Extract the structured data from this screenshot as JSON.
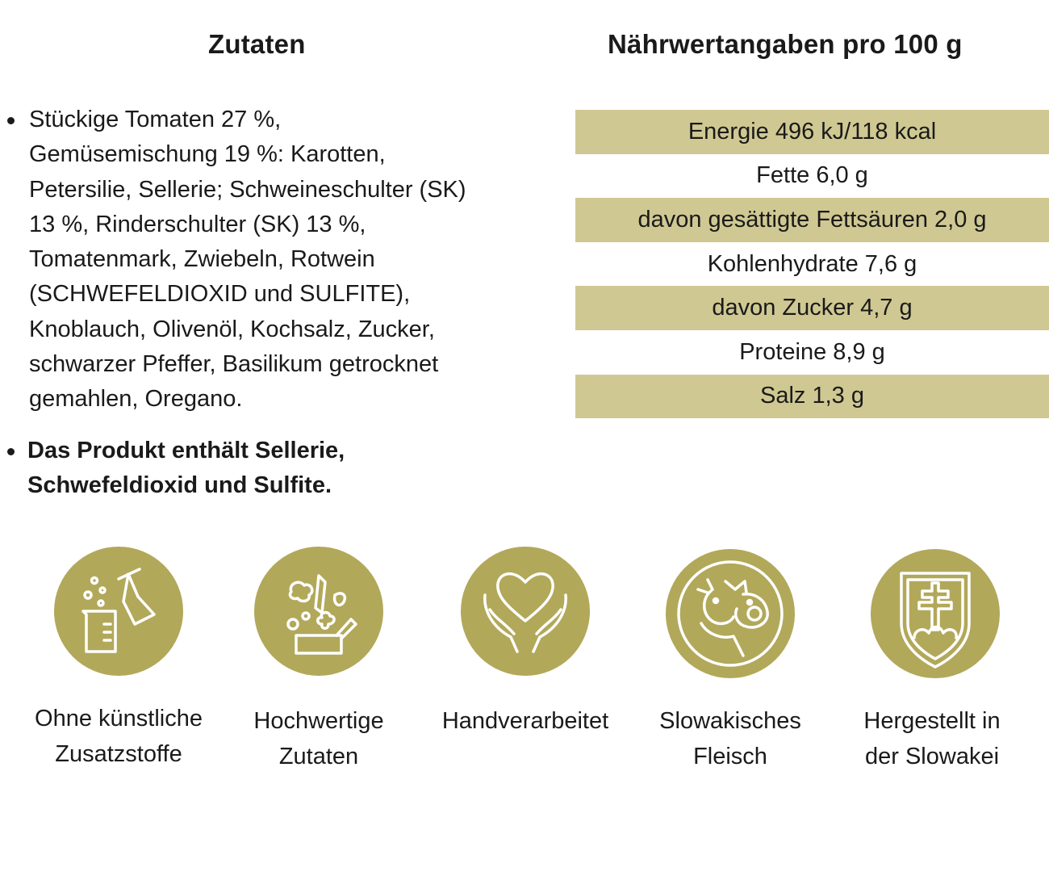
{
  "ingredients": {
    "heading": "Zutaten",
    "main_lines": [
      "Stückige Tomaten 27 %,",
      "Gemüsemischung 19 %: Karotten,",
      "Petersilie, Sellerie; Schweineschulter (SK)",
      "13 %, Rinderschulter (SK) 13 %,",
      "Tomatenmark, Zwiebeln, Rotwein",
      "(SCHWEFELDIOXID und SULFITE),",
      "Knoblauch, Olivenöl, Kochsalz, Zucker,",
      "schwarzer Pfeffer, Basilikum getrocknet",
      "gemahlen, Oregano."
    ],
    "allergen_lines": [
      "Das Produkt enthält Sellerie,",
      "Schwefeldioxid und Sulfite."
    ]
  },
  "nutrition": {
    "heading": "Nährwertangaben pro 100 g",
    "row_color": "#d0c892",
    "rows": [
      "Energie 496 kJ/118 kcal",
      "Fette 6,0 g",
      "davon gesättigte Fettsäuren 2,0 g",
      "Kohlenhydrate 7,6 g",
      "davon Zucker 4,7 g",
      "Proteine 8,9 g",
      "Salz 1,3 g"
    ]
  },
  "badges": {
    "color": "#b2a85a",
    "items": [
      {
        "icon": "lab-flask-icon",
        "lines": [
          "Ohne künstliche",
          "Zusatzstoffe"
        ]
      },
      {
        "icon": "vegetables-basket-icon",
        "lines": [
          "Hochwertige",
          "Zutaten"
        ]
      },
      {
        "icon": "heart-hands-icon",
        "lines": [
          "Handverarbeitet"
        ]
      },
      {
        "icon": "cow-pig-icon",
        "lines": [
          "Slowakisches",
          "Fleisch"
        ]
      },
      {
        "icon": "slovak-coat-of-arms-icon",
        "lines": [
          "Hergestellt in",
          "der Slowakei"
        ]
      }
    ]
  }
}
